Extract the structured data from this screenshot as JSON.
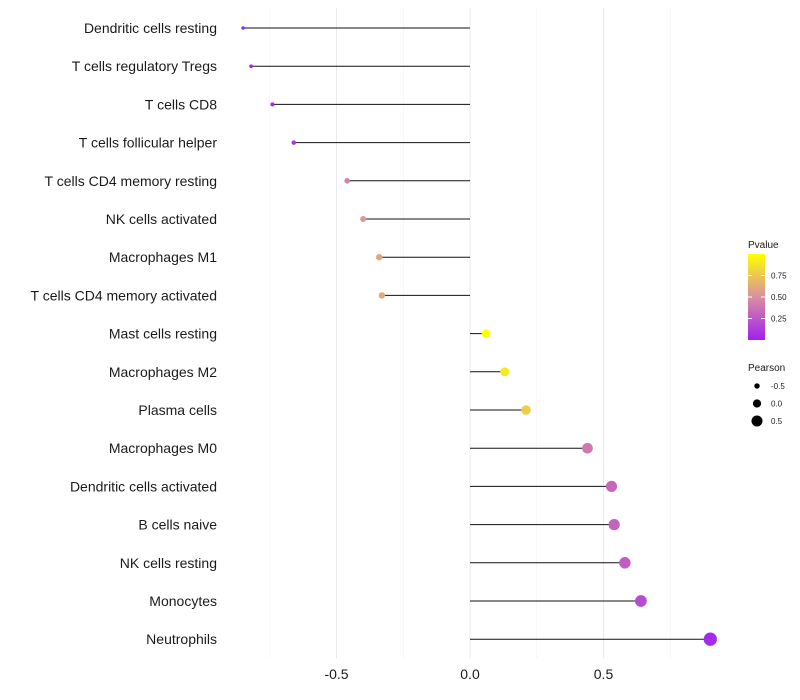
{
  "chart_data": {
    "type": "lollipop",
    "categories": [
      "Dendritic cells resting",
      "T cells regulatory  Tregs",
      "T cells CD8",
      "T cells follicular helper",
      "T cells CD4 memory resting",
      "NK cells activated",
      "Macrophages M1",
      "T cells CD4 memory activated",
      "Mast cells resting",
      "Macrophages M2",
      "Plasma cells",
      "Macrophages M0",
      "Dendritic cells activated",
      "B cells naive",
      "NK cells resting",
      "Monocytes",
      "Neutrophils"
    ],
    "pearson": [
      -0.85,
      -0.82,
      -0.74,
      -0.66,
      -0.46,
      -0.4,
      -0.34,
      -0.33,
      0.06,
      0.13,
      0.21,
      0.44,
      0.53,
      0.54,
      0.58,
      0.64,
      0.9
    ],
    "pvalue": [
      0.02,
      0.03,
      0.05,
      0.1,
      0.45,
      0.55,
      0.6,
      0.62,
      1.0,
      0.9,
      0.78,
      0.4,
      0.32,
      0.3,
      0.28,
      0.2,
      0.05
    ],
    "xlim": [
      -0.9,
      0.95
    ],
    "xticks": [
      -0.5,
      0.0,
      0.5
    ],
    "xtick_labels": [
      "-0.5",
      "0.0",
      "0.5"
    ],
    "grid": true,
    "legend_color": {
      "title": "Pvalue",
      "ticks": [
        0.75,
        0.5,
        0.25
      ],
      "tick_labels": [
        "0.75",
        "0.50",
        "0.25"
      ],
      "range": [
        0.0,
        1.0
      ],
      "low_color": "#a020f0",
      "mid_color": "#d98fa0",
      "high_color": "#ffff00"
    },
    "legend_size": {
      "title": "Pearson",
      "values": [
        -0.5,
        0.0,
        0.5
      ],
      "labels": [
        "-0.5",
        "0.0",
        "0.5"
      ]
    },
    "legend_placement": "right"
  }
}
